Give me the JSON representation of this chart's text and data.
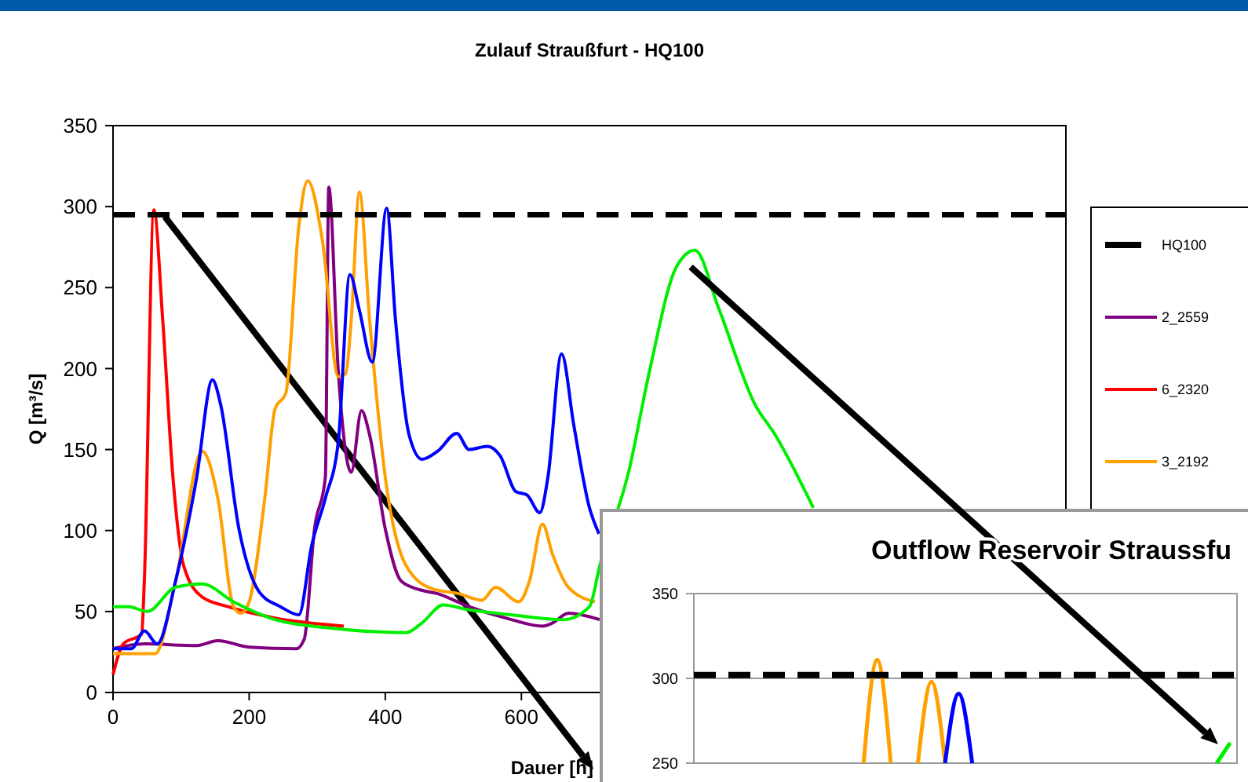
{
  "chart_data": [
    {
      "type": "line",
      "title": "Zulauf Straußfurt - HQ100",
      "xlabel": "Dauer [h]",
      "ylabel": "Q [m³/s]",
      "xlim": [
        0,
        1400
      ],
      "xticks": [
        0,
        200,
        400,
        600
      ],
      "ylim": [
        0,
        350
      ],
      "yticks": [
        0,
        50,
        100,
        150,
        200,
        250,
        300,
        350
      ],
      "grid": false,
      "legend": "right",
      "line_style": "solid",
      "marker": "none",
      "ref_lines": [
        {
          "axis": "y",
          "value": 295,
          "label": "HQ100",
          "color": "#000000",
          "line_style": "dashed"
        }
      ],
      "series": [
        {
          "name": "2_2559",
          "color": "#800080",
          "x": [
            0,
            46,
            123,
            154,
            200,
            269,
            281,
            296,
            312,
            317,
            331,
            350,
            365,
            377,
            400,
            423,
            446,
            477,
            523,
            585,
            631,
            646,
            669,
            715
          ],
          "values": [
            27,
            30,
            29,
            32,
            28,
            27,
            33,
            101,
            133,
            312,
            198,
            136,
            174,
            159,
            101,
            69,
            64,
            61,
            53,
            45,
            41,
            43,
            49,
            45
          ]
        },
        {
          "name": "6_2320",
          "color": "#ff0000",
          "x": [
            0,
            15,
            42,
            46,
            60,
            73,
            88,
            104,
            131,
            169,
            238,
            339
          ],
          "values": [
            11,
            30,
            36,
            69,
            298,
            230,
            133,
            78,
            59,
            53,
            46,
            41
          ]
        },
        {
          "name": "3_2192",
          "color": "#ffa000",
          "x": [
            0,
            62,
            92,
            131,
            154,
            177,
            188,
            200,
            223,
            238,
            254,
            273,
            286,
            308,
            331,
            342,
            350,
            362,
            377,
            400,
            431,
            469,
            508,
            542,
            562,
            596,
            612,
            631,
            646,
            669,
            708
          ],
          "values": [
            24,
            24,
            69,
            149,
            120,
            53,
            49,
            56,
            120,
            175,
            185,
            288,
            316,
            278,
            195,
            197,
            230,
            309,
            230,
            133,
            78,
            64,
            61,
            57,
            65,
            56,
            69,
            104,
            85,
            65,
            56
          ]
        },
        {
          "color": "#0000ff",
          "x": [
            0,
            27,
            46,
            65,
            92,
            123,
            146,
            158,
            185,
            215,
            246,
            273,
            292,
            312,
            331,
            348,
            362,
            381,
            402,
            415,
            435,
            454,
            477,
            505,
            523,
            550,
            569,
            592,
            608,
            627,
            639,
            659,
            677,
            700,
            714
          ],
          "values": [
            27,
            27,
            38,
            30,
            69,
            133,
            193,
            178,
            101,
            62,
            53,
            48,
            91,
            120,
            155,
            258,
            236,
            204,
            299,
            230,
            159,
            144,
            149,
            160,
            150,
            152,
            146,
            124,
            122,
            111,
            133,
            209,
            165,
            114,
            98
          ]
        },
        {
          "color": "#00ee00",
          "x": [
            0,
            23,
            50,
            92,
            131,
            177,
            238,
            315,
            431,
            454,
            485,
            523,
            585,
            662,
            700,
            715,
            758,
            788,
            828,
            855,
            890,
            943,
            973,
            1029
          ],
          "values": [
            53,
            53,
            50,
            65,
            67,
            56,
            45,
            40,
            37,
            43,
            54,
            51,
            48,
            45,
            53,
            78,
            137,
            198,
            263,
            273,
            237,
            178,
            159,
            114
          ]
        }
      ]
    },
    {
      "type": "line",
      "title": "Outflow Reservoir Straussfu",
      "categories": [
        null,
        null,
        null,
        null,
        null,
        null,
        null,
        null,
        null,
        null,
        null,
        null,
        null,
        null,
        null,
        null,
        null,
        null,
        null,
        null,
        null,
        null,
        null,
        null,
        null,
        null,
        null,
        null,
        null,
        null,
        null,
        null,
        null,
        null,
        null,
        null,
        null,
        null,
        null,
        null
      ],
      "ylim": [
        250,
        350
      ],
      "yticks": [
        250,
        300,
        350
      ],
      "grid": "y",
      "tick_labels": "y",
      "line_style": "solid",
      "marker": "none",
      "ref_lines": [
        {
          "axis": "y",
          "value": 302,
          "color": "#000000",
          "line_style": "dashed"
        }
      ],
      "series": [
        {
          "color": "#ffa000",
          "values": [
            null,
            null,
            null,
            null,
            null,
            null,
            null,
            null,
            null,
            null,
            null,
            null,
            250,
            311,
            250,
            null,
            250,
            298,
            250,
            null,
            null,
            null,
            null,
            null,
            null,
            null,
            null,
            null,
            null,
            null,
            null,
            null,
            null,
            null,
            null,
            null,
            null,
            null,
            null,
            null
          ]
        },
        {
          "color": "#0000ff",
          "values": [
            null,
            null,
            null,
            null,
            null,
            null,
            null,
            null,
            null,
            null,
            null,
            null,
            null,
            null,
            null,
            null,
            null,
            null,
            250,
            291,
            250,
            null,
            null,
            null,
            null,
            null,
            null,
            null,
            null,
            null,
            null,
            null,
            null,
            null,
            null,
            null,
            null,
            null,
            null,
            null
          ]
        },
        {
          "color": "#00ee00",
          "values": [
            null,
            null,
            null,
            null,
            null,
            null,
            null,
            null,
            null,
            null,
            null,
            null,
            null,
            null,
            null,
            null,
            null,
            null,
            null,
            null,
            null,
            null,
            null,
            null,
            null,
            null,
            null,
            null,
            null,
            null,
            null,
            null,
            null,
            null,
            null,
            null,
            null,
            null,
            250,
            262
          ]
        }
      ]
    }
  ]
}
